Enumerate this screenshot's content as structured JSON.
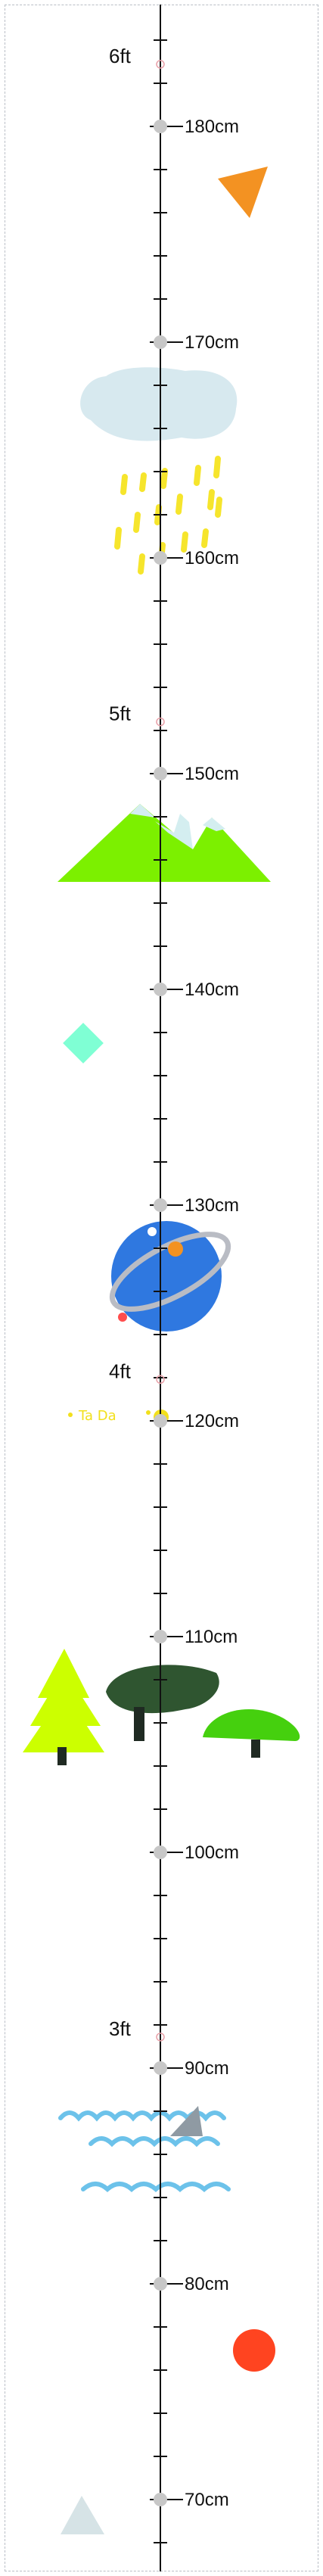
{
  "ruler": {
    "cm_labels": [
      "180cm",
      "170cm",
      "160cm",
      "150cm",
      "140cm",
      "130cm",
      "120cm",
      "110cm",
      "100cm",
      "90cm",
      "80cm",
      "70cm"
    ],
    "cm_values": [
      180,
      170,
      160,
      150,
      140,
      130,
      120,
      110,
      100,
      90,
      80,
      70
    ],
    "ft_labels": [
      "6ft",
      "5ft",
      "4ft",
      "3ft"
    ],
    "ft_values": [
      6,
      5,
      4,
      3
    ]
  },
  "decorations": {
    "tada_text": "Ta Da",
    "colors": {
      "ruler_line": "#111111",
      "cm_dot": "#c7c7c7",
      "orange": "#f39222",
      "cloud": "#d7e9ef",
      "rain": "#f6e52c",
      "mountain_green": "#7cf000",
      "snow": "#d4eef0",
      "mint": "#7fffd4",
      "planet": "#2f78e0",
      "ring": "#b9bcc4",
      "tada_yellow": "#f2e01c",
      "tree_lime": "#ccff00",
      "tree_dark": "#2f5530",
      "tree_green": "#45d00e",
      "trunk": "#1f2a22",
      "wave": "#6cc2ea",
      "shark_fin": "#8f9aa3",
      "sun": "#ff4420",
      "triangle": "#d6e3e6"
    }
  }
}
